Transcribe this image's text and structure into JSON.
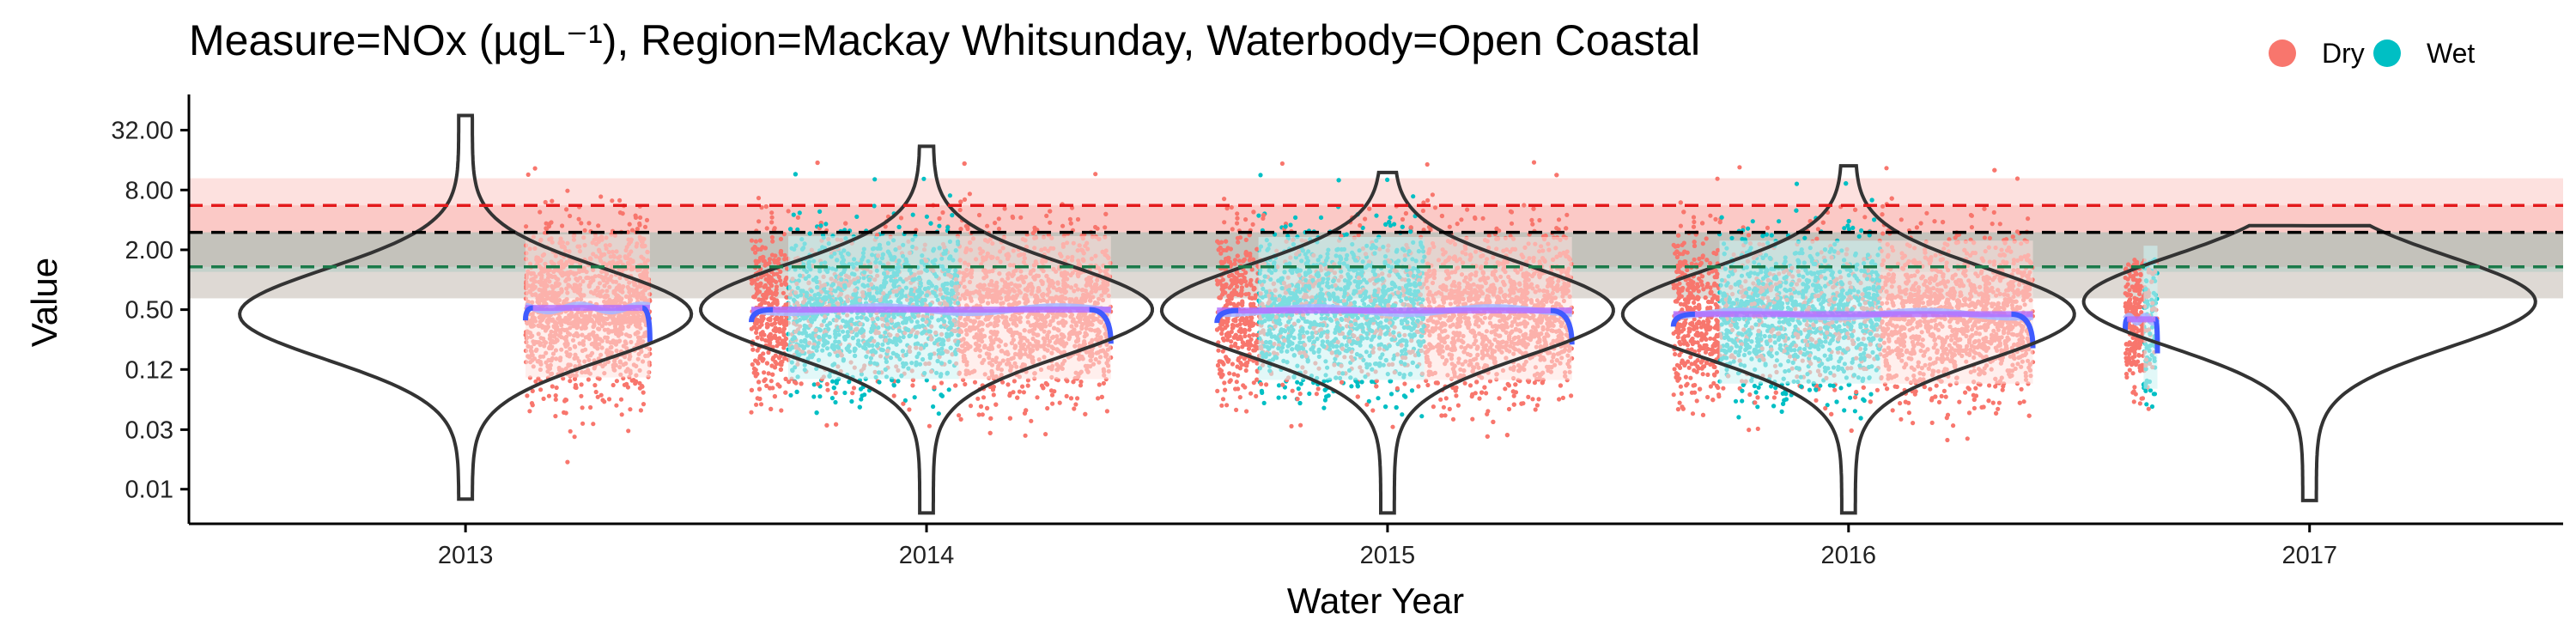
{
  "chart_data": {
    "type": "scatter",
    "title": "Measure=NOx (µgL⁻¹), Region=Mackay Whitsunday, Waterbody=Open Coastal",
    "xlabel": "Water Year",
    "ylabel": "Value",
    "x_ticks": [
      "2013",
      "2014",
      "2015",
      "2016",
      "2017"
    ],
    "x_tick_values": [
      2013,
      2014,
      2015,
      2016,
      2017
    ],
    "xlim": [
      2012.4,
      2017.55
    ],
    "y_scale": "log",
    "y_ticks": [
      "0.01",
      "0.03",
      "0.12",
      "0.50",
      "2.00",
      "8.00",
      "32.00"
    ],
    "y_tick_values": [
      0.0078,
      0.031,
      0.125,
      0.5,
      2.0,
      8.0,
      32.0
    ],
    "ylim": [
      0.0035,
      60
    ],
    "grid": false,
    "legend": {
      "position": "top-right",
      "entries": [
        {
          "label": "Dry",
          "color": "#F8766D"
        },
        {
          "label": "Wet",
          "color": "#00BFC4"
        }
      ]
    },
    "guideline_bands": [
      {
        "name": "upper",
        "from": 0.65,
        "to": 10.5,
        "color": "#F8766D",
        "opacity": 0.22
      },
      {
        "name": "inner-upper",
        "from": 1.35,
        "to": 5.6,
        "color": "#F8766D",
        "opacity": 0.22
      },
      {
        "name": "lower",
        "from": 0.65,
        "to": 3.0,
        "color": "#66BBAA",
        "opacity": 0.2
      },
      {
        "name": "inner-lower",
        "from": 1.2,
        "to": 3.0,
        "color": "#66BBAA",
        "opacity": 0.2
      }
    ],
    "reference_lines": [
      {
        "value": 5.6,
        "color": "#E41A1C",
        "style": "dashed"
      },
      {
        "value": 3.0,
        "color": "#000000",
        "style": "dashed"
      },
      {
        "value": 1.35,
        "color": "#1B7A4A",
        "style": "dashed"
      }
    ],
    "colors": {
      "dry": "#F8766D",
      "wet": "#00BFC4",
      "trend": "#3F5BFF",
      "smooth": "#A9B7FF",
      "median": "#B36BFF",
      "violin": "#333333"
    },
    "water_years": [
      {
        "year": 2013,
        "data_start": 2013.13,
        "data_end": 2013.4,
        "median": 0.52,
        "data_min": 0.009,
        "data_max": 44,
        "wet_start": null,
        "wet_end": null,
        "violin_peak": 0.45,
        "violin_min": 0.0062,
        "violin_max": 45
      },
      {
        "year": 2014,
        "data_start": 2013.62,
        "data_end": 2014.4,
        "median": 0.5,
        "data_min": 0.008,
        "data_max": 28,
        "wet_start": 2013.7,
        "wet_end": 2014.07,
        "violin_peak": 0.5,
        "violin_min": 0.0045,
        "violin_max": 22
      },
      {
        "year": 2015,
        "data_start": 2014.63,
        "data_end": 2015.4,
        "median": 0.49,
        "data_min": 0.0045,
        "data_max": 18,
        "wet_start": 2014.72,
        "wet_end": 2015.08,
        "violin_peak": 0.49,
        "violin_min": 0.0045,
        "violin_max": 12
      },
      {
        "year": 2016,
        "data_start": 2015.62,
        "data_end": 2016.4,
        "median": 0.45,
        "data_min": 0.0045,
        "data_max": 15,
        "wet_start": 2015.72,
        "wet_end": 2016.07,
        "violin_peak": 0.45,
        "violin_min": 0.0045,
        "violin_max": 14
      },
      {
        "year": 2017,
        "data_start": 2016.6,
        "data_end": 2016.67,
        "median": 0.4,
        "data_min": 0.006,
        "data_max": 1.6,
        "wet_start": 2016.64,
        "wet_end": 2016.67,
        "violin_peak": 0.6,
        "violin_min": 0.006,
        "violin_max": 3.5
      }
    ]
  }
}
